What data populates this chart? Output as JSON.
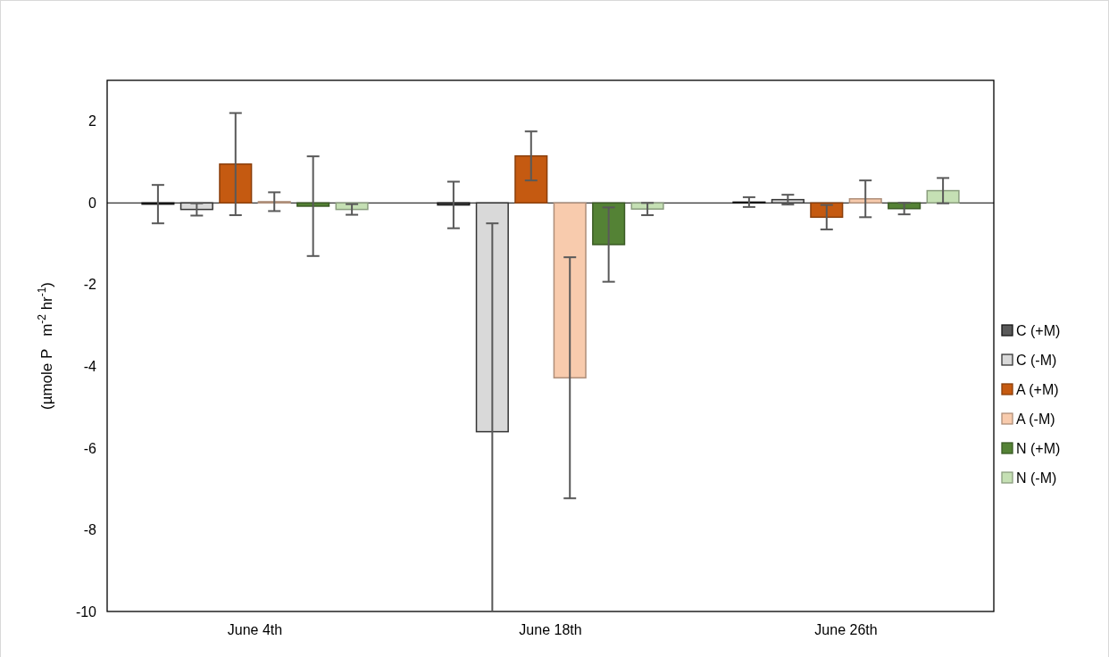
{
  "chart_data": {
    "type": "bar",
    "ylabel": "(µmole P   m$^{-2}$ hr$^{-1}$)",
    "categories": [
      "June 4th",
      "June 18th",
      "June 26th"
    ],
    "ylim": [
      -10,
      3
    ],
    "yticks": [
      -10,
      -8,
      -6,
      -4,
      -2,
      0,
      2
    ],
    "legend": "right",
    "series": [
      {
        "name": "C (+M)",
        "color": "#595959",
        "values": [
          -0.03,
          -0.05,
          0.02
        ],
        "errors": [
          0.47,
          0.57,
          0.12
        ]
      },
      {
        "name": "C (-M)",
        "color": "#d9d9d9",
        "values": [
          -0.16,
          -5.6,
          0.08
        ],
        "errors": [
          0.15,
          [
            -10,
            -0.5
          ],
          0.12
        ]
      },
      {
        "name": "A (+M)",
        "color": "#c55a11",
        "values": [
          0.95,
          1.15,
          -0.35
        ],
        "errors": [
          1.25,
          0.6,
          0.3
        ]
      },
      {
        "name": "A (-M)",
        "color": "#f8cbad",
        "values": [
          0.03,
          -4.28,
          0.1
        ],
        "errors": [
          0.23,
          2.95,
          0.45
        ]
      },
      {
        "name": "N (+M)",
        "color": "#548235",
        "values": [
          -0.08,
          -1.02,
          -0.14
        ],
        "errors": [
          1.22,
          0.91,
          0.14
        ]
      },
      {
        "name": "N (-M)",
        "color": "#c5e0b4",
        "values": [
          -0.16,
          -0.15,
          0.3
        ],
        "errors": [
          0.13,
          0.15,
          0.31
        ]
      }
    ]
  }
}
